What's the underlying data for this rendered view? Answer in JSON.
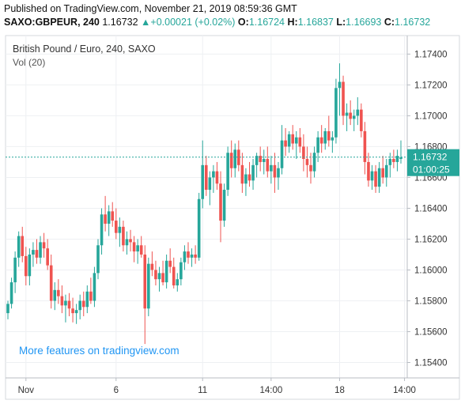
{
  "header": {
    "published": "Published on TradingView.com, November 21, 2019 08:59:36 GMT",
    "symbol": "SAXO:GBPEUR, 240",
    "last": "1.16732",
    "arrow": "▲",
    "change": "+0.00021 (+0.02%)",
    "o_label": "O:",
    "o_value": "1.16724",
    "h_label": "H:",
    "h_value": "1.16837",
    "l_label": "L:",
    "l_value": "1.16693",
    "c_label": "C:",
    "c_value": "1.16732"
  },
  "chart": {
    "legend_title": "British Pound / Euro, 240, SAXO",
    "legend_vol": "Vol (20)",
    "watermark": "More features on tradingview.com",
    "price_label": "1.16732",
    "countdown_label": "01:00:25"
  },
  "colors": {
    "up": "#26a69a",
    "down": "#ef5350",
    "grid": "#eef0f3",
    "axis_text": "#333333",
    "watermark": "#2196f3"
  },
  "chart_data": {
    "type": "candlestick",
    "y_axis": {
      "position": "right",
      "ticks": [
        "1.17400",
        "1.17200",
        "1.17000",
        "1.16800",
        "1.16600",
        "1.16400",
        "1.16200",
        "1.16000",
        "1.15800",
        "1.15600",
        "1.15400"
      ],
      "range": [
        1.153,
        1.1752
      ]
    },
    "x_axis": {
      "ticks": [
        {
          "label": "Nov",
          "index": 5
        },
        {
          "label": "6",
          "index": 30
        },
        {
          "label": "11",
          "index": 54
        },
        {
          "label": "14:00",
          "index": 73
        },
        {
          "label": "18",
          "index": 92
        },
        {
          "label": "14:00",
          "index": 110
        }
      ]
    },
    "last_price": 1.16732,
    "grid": true,
    "candles": [
      {
        "o": 1.1572,
        "h": 1.158,
        "l": 1.1568,
        "c": 1.1578
      },
      {
        "o": 1.1578,
        "h": 1.1595,
        "l": 1.1575,
        "c": 1.1592
      },
      {
        "o": 1.1592,
        "h": 1.1612,
        "l": 1.1585,
        "c": 1.1608
      },
      {
        "o": 1.1608,
        "h": 1.1625,
        "l": 1.1602,
        "c": 1.1622
      },
      {
        "o": 1.1622,
        "h": 1.1628,
        "l": 1.1605,
        "c": 1.1609
      },
      {
        "o": 1.1609,
        "h": 1.1615,
        "l": 1.159,
        "c": 1.1596
      },
      {
        "o": 1.1596,
        "h": 1.1614,
        "l": 1.159,
        "c": 1.161
      },
      {
        "o": 1.161,
        "h": 1.1618,
        "l": 1.1602,
        "c": 1.1613
      },
      {
        "o": 1.1613,
        "h": 1.162,
        "l": 1.1604,
        "c": 1.1608
      },
      {
        "o": 1.1608,
        "h": 1.1622,
        "l": 1.1604,
        "c": 1.1618
      },
      {
        "o": 1.1618,
        "h": 1.1624,
        "l": 1.1608,
        "c": 1.1614
      },
      {
        "o": 1.1614,
        "h": 1.162,
        "l": 1.16,
        "c": 1.1603
      },
      {
        "o": 1.1603,
        "h": 1.161,
        "l": 1.1575,
        "c": 1.158
      },
      {
        "o": 1.158,
        "h": 1.1592,
        "l": 1.1574,
        "c": 1.1587
      },
      {
        "o": 1.1587,
        "h": 1.1594,
        "l": 1.1578,
        "c": 1.1583
      },
      {
        "o": 1.1583,
        "h": 1.159,
        "l": 1.1572,
        "c": 1.1577
      },
      {
        "o": 1.1577,
        "h": 1.1584,
        "l": 1.1566,
        "c": 1.158
      },
      {
        "o": 1.158,
        "h": 1.1585,
        "l": 1.157,
        "c": 1.1575
      },
      {
        "o": 1.1575,
        "h": 1.1582,
        "l": 1.1566,
        "c": 1.1572
      },
      {
        "o": 1.1572,
        "h": 1.1578,
        "l": 1.1565,
        "c": 1.1574
      },
      {
        "o": 1.1574,
        "h": 1.1584,
        "l": 1.1568,
        "c": 1.158
      },
      {
        "o": 1.158,
        "h": 1.1586,
        "l": 1.157,
        "c": 1.1576
      },
      {
        "o": 1.1576,
        "h": 1.159,
        "l": 1.1572,
        "c": 1.1586
      },
      {
        "o": 1.1586,
        "h": 1.1595,
        "l": 1.1578,
        "c": 1.158
      },
      {
        "o": 1.158,
        "h": 1.1602,
        "l": 1.1576,
        "c": 1.1598
      },
      {
        "o": 1.1598,
        "h": 1.162,
        "l": 1.1594,
        "c": 1.1616
      },
      {
        "o": 1.1616,
        "h": 1.164,
        "l": 1.161,
        "c": 1.1636
      },
      {
        "o": 1.1636,
        "h": 1.1648,
        "l": 1.1625,
        "c": 1.163
      },
      {
        "o": 1.163,
        "h": 1.1642,
        "l": 1.1622,
        "c": 1.1638
      },
      {
        "o": 1.1638,
        "h": 1.1644,
        "l": 1.1628,
        "c": 1.1632
      },
      {
        "o": 1.1632,
        "h": 1.164,
        "l": 1.162,
        "c": 1.1624
      },
      {
        "o": 1.1624,
        "h": 1.1634,
        "l": 1.1615,
        "c": 1.1628
      },
      {
        "o": 1.1628,
        "h": 1.1632,
        "l": 1.1612,
        "c": 1.1616
      },
      {
        "o": 1.1616,
        "h": 1.1625,
        "l": 1.161,
        "c": 1.162
      },
      {
        "o": 1.162,
        "h": 1.1626,
        "l": 1.1612,
        "c": 1.1618
      },
      {
        "o": 1.1618,
        "h": 1.1622,
        "l": 1.1605,
        "c": 1.1612
      },
      {
        "o": 1.1612,
        "h": 1.162,
        "l": 1.1604,
        "c": 1.1616
      },
      {
        "o": 1.1616,
        "h": 1.1622,
        "l": 1.1608,
        "c": 1.161
      },
      {
        "o": 1.161,
        "h": 1.1616,
        "l": 1.1552,
        "c": 1.1575
      },
      {
        "o": 1.1575,
        "h": 1.1608,
        "l": 1.157,
        "c": 1.1604
      },
      {
        "o": 1.1604,
        "h": 1.1612,
        "l": 1.1596,
        "c": 1.16
      },
      {
        "o": 1.16,
        "h": 1.1606,
        "l": 1.159,
        "c": 1.1594
      },
      {
        "o": 1.1594,
        "h": 1.1602,
        "l": 1.1586,
        "c": 1.1598
      },
      {
        "o": 1.1598,
        "h": 1.1606,
        "l": 1.159,
        "c": 1.1592
      },
      {
        "o": 1.1592,
        "h": 1.161,
        "l": 1.1588,
        "c": 1.1606
      },
      {
        "o": 1.1606,
        "h": 1.1614,
        "l": 1.1598,
        "c": 1.1602
      },
      {
        "o": 1.1602,
        "h": 1.1608,
        "l": 1.1588,
        "c": 1.159
      },
      {
        "o": 1.159,
        "h": 1.1598,
        "l": 1.1586,
        "c": 1.1594
      },
      {
        "o": 1.1594,
        "h": 1.1608,
        "l": 1.159,
        "c": 1.1605
      },
      {
        "o": 1.1605,
        "h": 1.1616,
        "l": 1.16,
        "c": 1.1612
      },
      {
        "o": 1.1612,
        "h": 1.1618,
        "l": 1.1604,
        "c": 1.1608
      },
      {
        "o": 1.1608,
        "h": 1.1614,
        "l": 1.1602,
        "c": 1.161
      },
      {
        "o": 1.161,
        "h": 1.1616,
        "l": 1.1604,
        "c": 1.1608
      },
      {
        "o": 1.1608,
        "h": 1.165,
        "l": 1.1606,
        "c": 1.1646
      },
      {
        "o": 1.1646,
        "h": 1.1684,
        "l": 1.164,
        "c": 1.1668
      },
      {
        "o": 1.1668,
        "h": 1.1674,
        "l": 1.1648,
        "c": 1.1652
      },
      {
        "o": 1.1652,
        "h": 1.1664,
        "l": 1.1642,
        "c": 1.166
      },
      {
        "o": 1.166,
        "h": 1.1668,
        "l": 1.165,
        "c": 1.1664
      },
      {
        "o": 1.1664,
        "h": 1.167,
        "l": 1.1652,
        "c": 1.1656
      },
      {
        "o": 1.1656,
        "h": 1.1664,
        "l": 1.1618,
        "c": 1.1632
      },
      {
        "o": 1.1632,
        "h": 1.1656,
        "l": 1.1628,
        "c": 1.1652
      },
      {
        "o": 1.1652,
        "h": 1.168,
        "l": 1.1648,
        "c": 1.1676
      },
      {
        "o": 1.1676,
        "h": 1.1684,
        "l": 1.166,
        "c": 1.1666
      },
      {
        "o": 1.1666,
        "h": 1.1682,
        "l": 1.166,
        "c": 1.1678
      },
      {
        "o": 1.1678,
        "h": 1.1684,
        "l": 1.1664,
        "c": 1.1668
      },
      {
        "o": 1.1668,
        "h": 1.1676,
        "l": 1.165,
        "c": 1.1656
      },
      {
        "o": 1.1656,
        "h": 1.1666,
        "l": 1.1648,
        "c": 1.1662
      },
      {
        "o": 1.1662,
        "h": 1.167,
        "l": 1.1654,
        "c": 1.1658
      },
      {
        "o": 1.1658,
        "h": 1.1672,
        "l": 1.1652,
        "c": 1.1668
      },
      {
        "o": 1.1668,
        "h": 1.1676,
        "l": 1.166,
        "c": 1.1674
      },
      {
        "o": 1.1674,
        "h": 1.168,
        "l": 1.1664,
        "c": 1.167
      },
      {
        "o": 1.167,
        "h": 1.1678,
        "l": 1.1662,
        "c": 1.1672
      },
      {
        "o": 1.1672,
        "h": 1.168,
        "l": 1.166,
        "c": 1.1664
      },
      {
        "o": 1.1664,
        "h": 1.1674,
        "l": 1.1656,
        "c": 1.1668
      },
      {
        "o": 1.1668,
        "h": 1.1676,
        "l": 1.165,
        "c": 1.166
      },
      {
        "o": 1.166,
        "h": 1.167,
        "l": 1.1652,
        "c": 1.1666
      },
      {
        "o": 1.1666,
        "h": 1.1694,
        "l": 1.1662,
        "c": 1.1684
      },
      {
        "o": 1.1684,
        "h": 1.1692,
        "l": 1.1674,
        "c": 1.168
      },
      {
        "o": 1.168,
        "h": 1.169,
        "l": 1.1676,
        "c": 1.1688
      },
      {
        "o": 1.1688,
        "h": 1.1694,
        "l": 1.1678,
        "c": 1.1682
      },
      {
        "o": 1.1682,
        "h": 1.169,
        "l": 1.1672,
        "c": 1.1686
      },
      {
        "o": 1.1686,
        "h": 1.1692,
        "l": 1.1676,
        "c": 1.168
      },
      {
        "o": 1.168,
        "h": 1.1688,
        "l": 1.1664,
        "c": 1.1672
      },
      {
        "o": 1.1672,
        "h": 1.168,
        "l": 1.166,
        "c": 1.1668
      },
      {
        "o": 1.1668,
        "h": 1.1676,
        "l": 1.1656,
        "c": 1.1664
      },
      {
        "o": 1.1664,
        "h": 1.168,
        "l": 1.166,
        "c": 1.1676
      },
      {
        "o": 1.1676,
        "h": 1.169,
        "l": 1.167,
        "c": 1.1686
      },
      {
        "o": 1.1686,
        "h": 1.1694,
        "l": 1.1676,
        "c": 1.1682
      },
      {
        "o": 1.1682,
        "h": 1.1692,
        "l": 1.1678,
        "c": 1.169
      },
      {
        "o": 1.169,
        "h": 1.17,
        "l": 1.168,
        "c": 1.1684
      },
      {
        "o": 1.1684,
        "h": 1.169,
        "l": 1.1676,
        "c": 1.1686
      },
      {
        "o": 1.1686,
        "h": 1.1724,
        "l": 1.1682,
        "c": 1.1718
      },
      {
        "o": 1.1718,
        "h": 1.1734,
        "l": 1.17,
        "c": 1.1722
      },
      {
        "o": 1.1722,
        "h": 1.1726,
        "l": 1.1694,
        "c": 1.17
      },
      {
        "o": 1.17,
        "h": 1.1708,
        "l": 1.169,
        "c": 1.1702
      },
      {
        "o": 1.1702,
        "h": 1.171,
        "l": 1.1694,
        "c": 1.1698
      },
      {
        "o": 1.1698,
        "h": 1.1704,
        "l": 1.169,
        "c": 1.17
      },
      {
        "o": 1.17,
        "h": 1.1712,
        "l": 1.1694,
        "c": 1.1704
      },
      {
        "o": 1.1704,
        "h": 1.1708,
        "l": 1.1686,
        "c": 1.169
      },
      {
        "o": 1.169,
        "h": 1.1696,
        "l": 1.1662,
        "c": 1.167
      },
      {
        "o": 1.167,
        "h": 1.1676,
        "l": 1.1654,
        "c": 1.1658
      },
      {
        "o": 1.1658,
        "h": 1.1668,
        "l": 1.1652,
        "c": 1.1664
      },
      {
        "o": 1.1664,
        "h": 1.1668,
        "l": 1.165,
        "c": 1.1654
      },
      {
        "o": 1.1654,
        "h": 1.167,
        "l": 1.165,
        "c": 1.1666
      },
      {
        "o": 1.1666,
        "h": 1.1674,
        "l": 1.1656,
        "c": 1.166
      },
      {
        "o": 1.166,
        "h": 1.1672,
        "l": 1.1654,
        "c": 1.1668
      },
      {
        "o": 1.1668,
        "h": 1.1676,
        "l": 1.166,
        "c": 1.1672
      },
      {
        "o": 1.1672,
        "h": 1.1678,
        "l": 1.1666,
        "c": 1.167
      },
      {
        "o": 1.167,
        "h": 1.1678,
        "l": 1.1664,
        "c": 1.1674
      },
      {
        "o": 1.1672,
        "h": 1.1684,
        "l": 1.1669,
        "c": 1.1673
      }
    ]
  }
}
